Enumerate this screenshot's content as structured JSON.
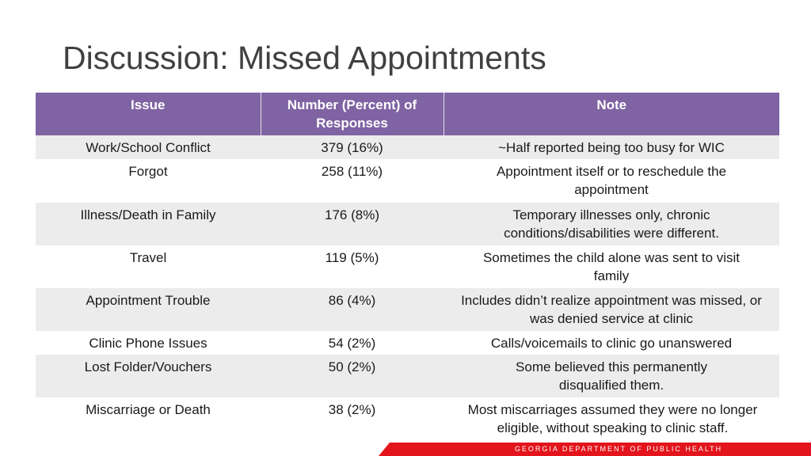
{
  "title": "Discussion: Missed Appointments",
  "table": {
    "headers": [
      "Issue",
      "Number (Percent) of Responses",
      "Note"
    ],
    "rows": [
      {
        "issue": "Work/School Conflict",
        "count": "379 (16%)",
        "note": "~Half reported being too busy for WIC"
      },
      {
        "issue": "Forgot",
        "count": "258 (11%)",
        "note": "Appointment itself or to reschedule the appointment"
      },
      {
        "issue": "Illness/Death in Family",
        "count": "176 (8%)",
        "note": "Temporary illnesses only, chronic conditions/disabilities were different."
      },
      {
        "issue": "Travel",
        "count": "119 (5%)",
        "note": "Sometimes the child alone was sent to visit family"
      },
      {
        "issue": "Appointment Trouble",
        "count": "86 (4%)",
        "note": "Includes didn’t realize appointment was missed, or was denied service at clinic"
      },
      {
        "issue": "Clinic Phone Issues",
        "count": "54 (2%)",
        "note": "Calls/voicemails to clinic go unanswered"
      },
      {
        "issue": "Lost Folder/Vouchers",
        "count": "50 (2%)",
        "note": "Some believed this permanently disqualified them."
      },
      {
        "issue": "Miscarriage or Death",
        "count": "38 (2%)",
        "note": "Most miscarriages assumed they were no longer eligible, without speaking to clinic staff."
      }
    ]
  },
  "footer": {
    "text": "GEORGIA DEPARTMENT OF PUBLIC HEALTH"
  },
  "colors": {
    "header_bg": "#7f63a3",
    "row_shade": "#ececec",
    "footer_bg": "#e3141b"
  }
}
